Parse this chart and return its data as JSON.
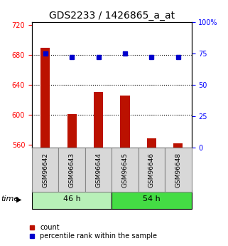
{
  "title": "GDS2233 / 1426865_a_at",
  "samples": [
    "GSM96642",
    "GSM96643",
    "GSM96644",
    "GSM96645",
    "GSM96646",
    "GSM96648"
  ],
  "counts": [
    690,
    601,
    630,
    626,
    568,
    562
  ],
  "percentiles": [
    75,
    72,
    72,
    75,
    72,
    72
  ],
  "groups": [
    {
      "label": "46 h",
      "color": "#b8f0b8",
      "start": 0,
      "end": 3
    },
    {
      "label": "54 h",
      "color": "#44dd44",
      "start": 3,
      "end": 6
    }
  ],
  "ylim_left": [
    556,
    724
  ],
  "ylim_right": [
    0,
    100
  ],
  "yticks_left": [
    560,
    600,
    640,
    680,
    720
  ],
  "yticks_right": [
    0,
    25,
    50,
    75,
    100
  ],
  "bar_color": "#bb1100",
  "dot_color": "#0000cc",
  "bar_bottom": 556,
  "grid_values": [
    680,
    640,
    600
  ],
  "xlabel": "time",
  "legend_count_label": "count",
  "legend_pct_label": "percentile rank within the sample",
  "title_fontsize": 10,
  "tick_fontsize": 7,
  "xtick_fontsize": 6.5,
  "label_fontsize": 8,
  "group_label_fontsize": 8,
  "xtick_box_color": "#d8d8d8",
  "xtick_box_edge": "#888888"
}
